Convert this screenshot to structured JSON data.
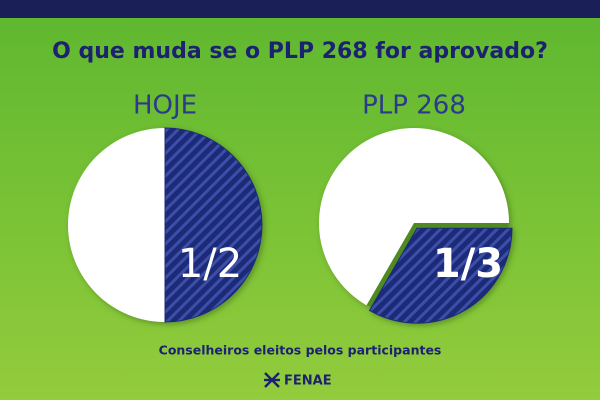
{
  "title": "O que muda se o PLP 268 for aprovado?",
  "chart_data": [
    {
      "type": "pie",
      "title": "HOJE",
      "values": [
        0.5
      ],
      "value_labels": [
        "1/2"
      ],
      "color": "#1f2a78"
    },
    {
      "type": "pie",
      "title": "PLP 268",
      "values": [
        0.3333
      ],
      "value_labels": [
        "1/3"
      ],
      "color": "#1f2a78"
    }
  ],
  "footnote": "Conselheiros eleitos pelos participantes",
  "brand": "FENAE"
}
